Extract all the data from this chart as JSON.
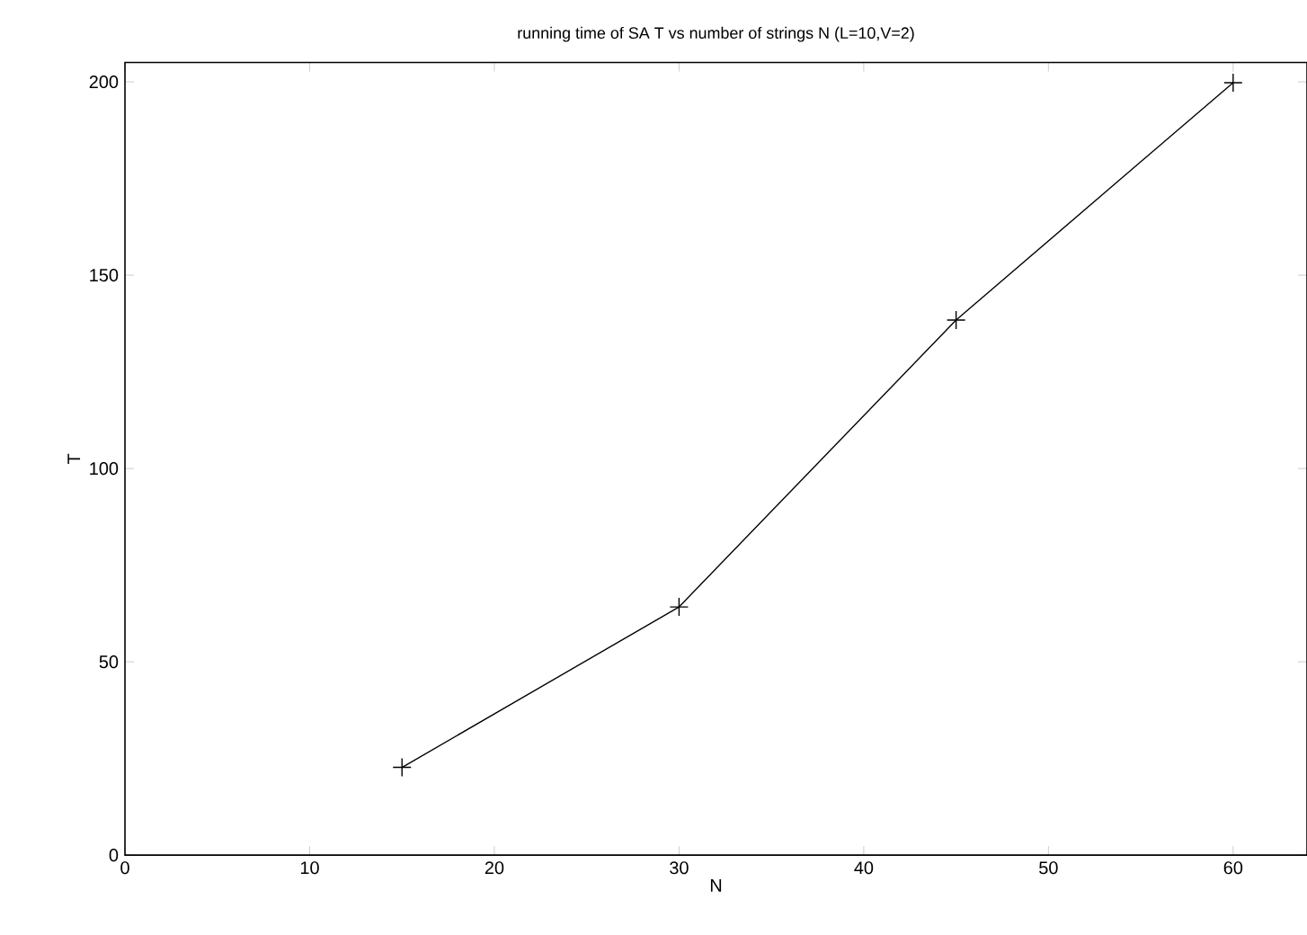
{
  "chart_data": {
    "type": "line",
    "title": "running time of SA T vs number of strings N (L=10,V=2)",
    "xlabel": "N",
    "ylabel": "T",
    "x": [
      15,
      30,
      45,
      60
    ],
    "series": [
      {
        "color": "#000000",
        "values": [
          22.7,
          64.2,
          138.4,
          199.8
        ]
      }
    ],
    "marker": "cross",
    "line_style": "solid",
    "grid": false,
    "xlim": [
      0,
      64
    ],
    "ylim": [
      0,
      205
    ],
    "xticks": [
      0,
      10,
      20,
      30,
      40,
      50,
      60
    ],
    "yticks": [
      0,
      50,
      100,
      150,
      200
    ]
  }
}
